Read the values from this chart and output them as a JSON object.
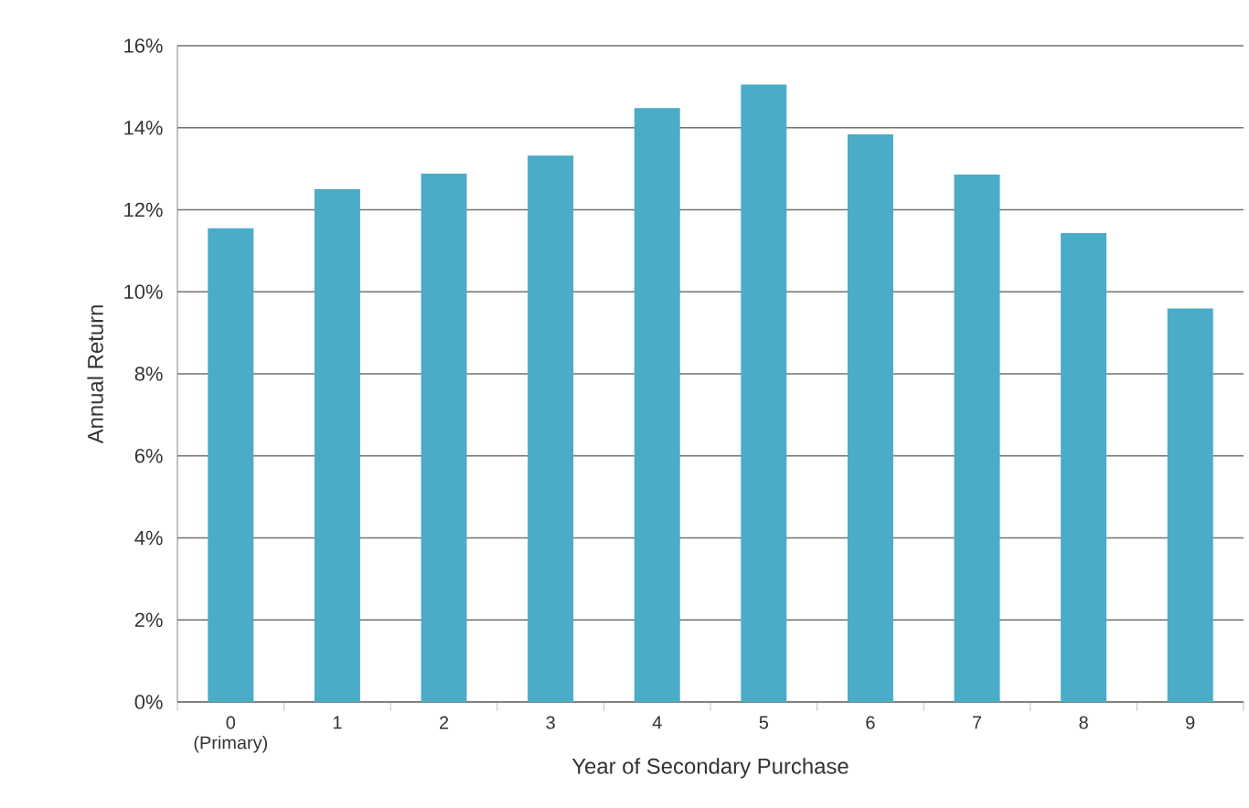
{
  "chart_data": {
    "type": "bar",
    "xlabel": "Year of Secondary Purchase",
    "ylabel": "Annual Return",
    "categories": [
      "0 (Primary)",
      "1",
      "2",
      "3",
      "4",
      "5",
      "6",
      "7",
      "8",
      "9"
    ],
    "values": [
      11.55,
      12.5,
      12.88,
      13.32,
      14.48,
      15.05,
      13.84,
      12.86,
      11.43,
      9.59
    ],
    "color": "#4aacc6",
    "ylim": [
      0,
      16
    ],
    "yticks": [
      {
        "value": 0,
        "label": "0%"
      },
      {
        "value": 2,
        "label": "2%"
      },
      {
        "value": 4,
        "label": "4%"
      },
      {
        "value": 6,
        "label": "6%"
      },
      {
        "value": 8,
        "label": "8%"
      },
      {
        "value": 10,
        "label": "10%"
      },
      {
        "value": 12,
        "label": "12%"
      },
      {
        "value": 14,
        "label": "14%"
      },
      {
        "value": 16,
        "label": "16%"
      }
    ],
    "grid": "y"
  }
}
